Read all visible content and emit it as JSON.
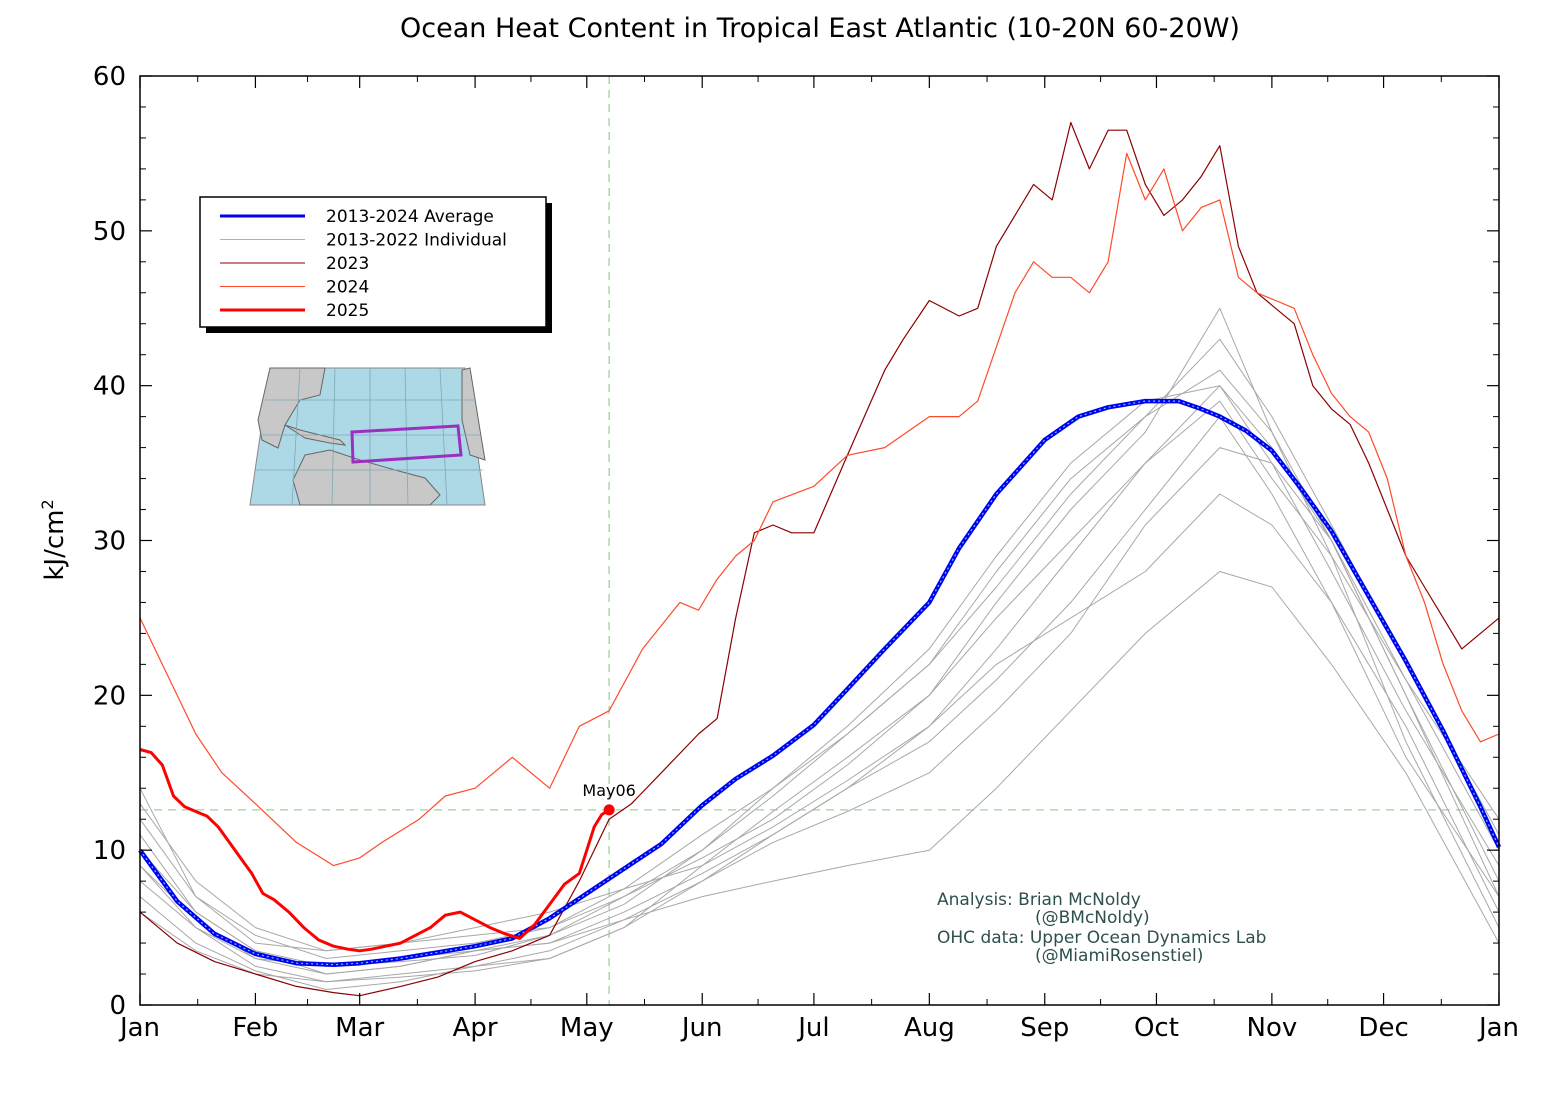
{
  "chart_data": {
    "type": "line",
    "title": "Ocean Heat Content in Tropical East Atlantic (10-20N 60-20W)",
    "ylabel": "kJ/cm",
    "ylabel_sup": "2",
    "ylim": [
      0,
      60
    ],
    "yticks": [
      0,
      10,
      20,
      30,
      40,
      50,
      60
    ],
    "xlim": [
      0,
      365
    ],
    "xticks": [
      {
        "label": "Jan",
        "day": 0
      },
      {
        "label": "Feb",
        "day": 31
      },
      {
        "label": "Mar",
        "day": 59
      },
      {
        "label": "Apr",
        "day": 90
      },
      {
        "label": "May",
        "day": 120
      },
      {
        "label": "Jun",
        "day": 151
      },
      {
        "label": "Jul",
        "day": 181
      },
      {
        "label": "Aug",
        "day": 212
      },
      {
        "label": "Sep",
        "day": 243
      },
      {
        "label": "Oct",
        "day": 273
      },
      {
        "label": "Nov",
        "day": 304
      },
      {
        "label": "Dec",
        "day": 334
      },
      {
        "label": "Jan",
        "day": 365
      }
    ],
    "reference_lines": {
      "x_day": 126,
      "y_value": 12.6
    },
    "current_point": {
      "label": "May06",
      "day": 126,
      "value": 12.6
    },
    "legend": [
      {
        "label": "2013-2024 Average",
        "color": "#0000ee",
        "width": 3
      },
      {
        "label": "2013-2022 Individual",
        "color": "#b0b0b0",
        "width": 1
      },
      {
        "label": "2023",
        "color": "#8b0000",
        "width": 1
      },
      {
        "label": "2024",
        "color": "#ff4a2a",
        "width": 1
      },
      {
        "label": "2025",
        "color": "#ff0000",
        "width": 3
      }
    ],
    "series": [
      {
        "name": "2013-2024 Average",
        "color": "#0000ee",
        "x": [
          0,
          10,
          20,
          31,
          42,
          52,
          59,
          70,
          80,
          90,
          100,
          110,
          120,
          130,
          140,
          151,
          160,
          170,
          181,
          190,
          200,
          212,
          220,
          230,
          243,
          252,
          260,
          270,
          279,
          285,
          290,
          297,
          304,
          312,
          320,
          330,
          340,
          350,
          360,
          365
        ],
        "y": [
          10,
          6.7,
          4.6,
          3.3,
          2.7,
          2.6,
          2.7,
          3.0,
          3.4,
          3.8,
          4.3,
          5.6,
          7.2,
          8.8,
          10.4,
          12.9,
          14.6,
          16.1,
          18.1,
          20.4,
          23.0,
          26.0,
          29.5,
          33.0,
          36.5,
          38.0,
          38.6,
          39.0,
          39.0,
          38.5,
          38.0,
          37.1,
          35.8,
          33.3,
          30.6,
          26.4,
          22.2,
          17.7,
          12.8,
          10.2
        ]
      },
      {
        "name": "2013-2022 Individual",
        "color": "#a8a8a8",
        "x": [
          0,
          15,
          31,
          50,
          70,
          90,
          110,
          130,
          151,
          170,
          190,
          212,
          230,
          250,
          270,
          290,
          304,
          320,
          340,
          365
        ],
        "y": [
          14,
          7,
          4,
          3.5,
          4,
          4.5,
          5,
          7.5,
          11,
          14,
          18,
          23,
          29,
          35,
          39,
          40,
          36,
          30,
          20,
          8
        ]
      },
      {
        "name": "2013-2022 Individual",
        "color": "#a8a8a8",
        "x": [
          0,
          15,
          31,
          50,
          70,
          90,
          110,
          130,
          151,
          170,
          190,
          212,
          230,
          250,
          270,
          290,
          304,
          320,
          340,
          365
        ],
        "y": [
          8,
          5,
          2.5,
          1.5,
          1.8,
          2.2,
          3,
          5,
          8,
          11,
          14,
          18,
          22,
          25,
          28,
          33,
          31,
          26,
          18,
          6
        ]
      },
      {
        "name": "2013-2022 Individual",
        "color": "#a8a8a8",
        "x": [
          0,
          15,
          31,
          50,
          70,
          90,
          110,
          130,
          151,
          170,
          190,
          212,
          230,
          250,
          270,
          290,
          304,
          320,
          340,
          365
        ],
        "y": [
          11,
          6,
          3.5,
          2.5,
          2.8,
          3.2,
          4.5,
          7,
          10,
          14,
          17.5,
          22,
          27,
          33,
          38,
          43,
          38,
          31,
          22,
          11
        ]
      },
      {
        "name": "2013-2022 Individual",
        "color": "#a8a8a8",
        "x": [
          0,
          15,
          31,
          50,
          70,
          90,
          110,
          130,
          151,
          170,
          190,
          212,
          230,
          250,
          270,
          290,
          304,
          320,
          340,
          365
        ],
        "y": [
          9,
          5.5,
          3,
          2,
          2.5,
          3.5,
          4,
          5.5,
          8,
          10.5,
          12.5,
          15,
          19,
          24,
          31,
          36,
          35,
          28,
          19,
          9
        ]
      },
      {
        "name": "2013-2022 Individual",
        "color": "#a8a8a8",
        "x": [
          0,
          15,
          31,
          50,
          70,
          90,
          110,
          130,
          151,
          170,
          190,
          212,
          230,
          250,
          270,
          290,
          304,
          320,
          340,
          365
        ],
        "y": [
          7,
          4,
          2.2,
          1,
          1.5,
          2.5,
          3,
          5,
          9,
          12.5,
          16,
          20,
          26,
          32,
          37,
          45,
          37,
          29,
          17,
          5
        ]
      },
      {
        "name": "2013-2022 Individual",
        "color": "#a8a8a8",
        "x": [
          0,
          15,
          31,
          50,
          70,
          90,
          110,
          130,
          151,
          170,
          190,
          212,
          230,
          250,
          270,
          290,
          304,
          320,
          340,
          365
        ],
        "y": [
          12,
          7,
          4.5,
          3,
          3.5,
          4,
          5,
          7,
          9.5,
          12,
          15.5,
          20,
          25,
          30,
          35,
          39,
          34,
          29,
          21,
          12
        ]
      },
      {
        "name": "2013-2022 Individual",
        "color": "#a8a8a8",
        "x": [
          0,
          15,
          31,
          50,
          70,
          90,
          110,
          130,
          151,
          170,
          190,
          212,
          230,
          250,
          270,
          290,
          304,
          320,
          340,
          365
        ],
        "y": [
          6,
          3.5,
          2,
          1.5,
          2,
          2.5,
          3.5,
          5.5,
          7,
          8,
          9,
          10,
          14,
          19,
          24,
          28,
          27,
          22,
          15,
          4
        ]
      },
      {
        "name": "2013-2022 Individual",
        "color": "#a8a8a8",
        "x": [
          0,
          15,
          31,
          50,
          70,
          90,
          110,
          130,
          151,
          170,
          190,
          212,
          230,
          250,
          270,
          290,
          304,
          320,
          340,
          365
        ],
        "y": [
          10,
          6,
          3.5,
          2,
          2.5,
          3.5,
          4.5,
          6.5,
          10,
          13.5,
          17.5,
          22,
          28,
          34,
          38,
          41,
          37,
          30,
          21,
          10
        ]
      },
      {
        "name": "2013-2022 Individual",
        "color": "#a8a8a8",
        "x": [
          0,
          15,
          31,
          50,
          70,
          90,
          110,
          130,
          151,
          170,
          190,
          212,
          230,
          250,
          270,
          290,
          304,
          320,
          340,
          365
        ],
        "y": [
          13,
          8,
          5,
          3.5,
          4,
          5,
          6,
          7.5,
          9,
          11.5,
          14.5,
          18,
          23,
          29,
          35,
          40,
          35,
          30,
          20,
          7
        ]
      },
      {
        "name": "2013-2022 Individual",
        "color": "#a8a8a8",
        "x": [
          0,
          15,
          31,
          50,
          70,
          90,
          110,
          130,
          151,
          170,
          190,
          212,
          230,
          250,
          270,
          290,
          304,
          320,
          340,
          365
        ],
        "y": [
          9,
          5,
          3,
          2.5,
          3,
          3.5,
          4,
          6,
          8.5,
          11,
          14,
          17,
          21,
          26,
          32,
          38,
          33,
          26,
          16,
          7
        ]
      },
      {
        "name": "2023",
        "color": "#8b0000",
        "x": [
          0,
          10,
          20,
          31,
          42,
          52,
          59,
          70,
          80,
          90,
          100,
          110,
          118,
          126,
          132,
          140,
          150,
          155,
          160,
          165,
          170,
          175,
          181,
          190,
          200,
          205,
          212,
          220,
          225,
          230,
          235,
          240,
          245,
          250,
          255,
          260,
          265,
          270,
          275,
          280,
          285,
          290,
          295,
          300,
          305,
          310,
          315,
          320,
          325,
          330,
          335,
          340,
          345,
          350,
          355,
          360,
          365
        ],
        "y": [
          6,
          4,
          2.8,
          2,
          1.2,
          0.8,
          0.6,
          1.2,
          1.8,
          2.8,
          3.5,
          4.5,
          8,
          12,
          13,
          15,
          17.5,
          18.5,
          25,
          30.5,
          31,
          30.5,
          30.5,
          35.5,
          41,
          43,
          45.5,
          44.5,
          45,
          49,
          51,
          53,
          52,
          57,
          54,
          56.5,
          56.5,
          53,
          51,
          52,
          53.5,
          55.5,
          49,
          46,
          45,
          44,
          40,
          38.5,
          37.5,
          35,
          32,
          29,
          27,
          25,
          23,
          24,
          25
        ]
      },
      {
        "name": "2024",
        "color": "#ff4a2a",
        "x": [
          0,
          8,
          15,
          22,
          31,
          42,
          52,
          59,
          65,
          75,
          82,
          90,
          95,
          100,
          110,
          118,
          126,
          135,
          145,
          150,
          155,
          160,
          165,
          170,
          181,
          190,
          200,
          212,
          220,
          225,
          235,
          240,
          245,
          250,
          255,
          260,
          265,
          270,
          275,
          280,
          285,
          290,
          295,
          300,
          305,
          310,
          315,
          320,
          325,
          330,
          335,
          340,
          345,
          350,
          355,
          360,
          365
        ],
        "y": [
          25,
          21,
          17.5,
          15,
          13,
          10.5,
          9,
          9.5,
          10.5,
          12,
          13.5,
          14,
          15,
          16,
          14,
          18,
          19,
          23,
          26,
          25.5,
          27.5,
          29,
          30,
          32.5,
          33.5,
          35.5,
          36,
          38,
          38,
          39,
          46,
          48,
          47,
          47,
          46,
          48,
          55,
          52,
          54,
          50,
          51.5,
          52,
          47,
          46,
          45.5,
          45,
          42,
          39.5,
          38,
          37,
          34,
          29,
          26,
          22,
          19,
          17,
          17.5
        ]
      },
      {
        "name": "2025",
        "color": "#ff0000",
        "x": [
          0,
          3,
          6,
          9,
          12,
          15,
          18,
          21,
          24,
          27,
          30,
          33,
          36,
          40,
          44,
          48,
          52,
          56,
          59,
          62,
          66,
          70,
          74,
          78,
          82,
          86,
          90,
          94,
          98,
          102,
          106,
          110,
          114,
          118,
          120,
          122,
          124,
          126
        ],
        "y": [
          16.5,
          16.3,
          15.5,
          13.5,
          12.8,
          12.5,
          12.2,
          11.5,
          10.5,
          9.5,
          8.5,
          7.2,
          6.8,
          6.0,
          5.0,
          4.2,
          3.8,
          3.6,
          3.5,
          3.6,
          3.8,
          4.0,
          4.5,
          5.0,
          5.8,
          6.0,
          5.5,
          5.0,
          4.6,
          4.3,
          5.2,
          6.5,
          7.8,
          8.5,
          10,
          11.5,
          12.3,
          12.6
        ]
      }
    ],
    "annotations": [
      "Analysis: Brian McNoldy",
      "(@BMcNoldy)",
      "OHC data: Upper Ocean Dynamics Lab",
      "(@MiamiRosenstiel)"
    ]
  }
}
